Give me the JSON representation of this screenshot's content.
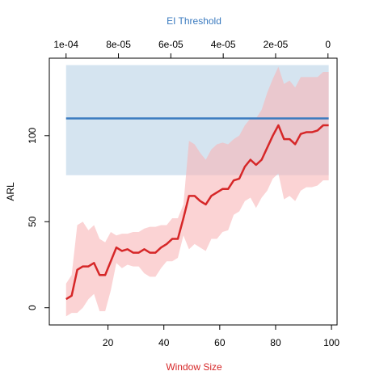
{
  "chart_data": {
    "type": "line",
    "xlabel": "Window Size",
    "ylabel": "ARL",
    "top_axis_label": "EI Threshold",
    "xlim": [
      -1,
      102
    ],
    "ylim": [
      -10,
      145
    ],
    "x_ticks": [
      20,
      40,
      60,
      80,
      100
    ],
    "x_tick_labels": [
      "20",
      "40",
      "60",
      "80",
      "100"
    ],
    "y_ticks": [
      0,
      50,
      100
    ],
    "y_tick_labels": [
      "0",
      "50",
      "100"
    ],
    "top_ticks_x": [
      5,
      23.75,
      42.5,
      61.25,
      80,
      98.75
    ],
    "top_tick_labels": [
      "1e-04",
      "8e-05",
      "6e-05",
      "4e-05",
      "2e-05",
      "0"
    ],
    "colors": {
      "window_line": "#d62728",
      "window_band": "#f8b5b8",
      "threshold_line": "#3a7abf",
      "threshold_band": "#b3cde3",
      "xlabel": "#d62728",
      "top_label": "#3a7abf"
    },
    "series": [
      {
        "kind": "line-with-band",
        "x": [
          5,
          7,
          9,
          11,
          13,
          15,
          17,
          19,
          21,
          23,
          25,
          27,
          29,
          31,
          33,
          35,
          37,
          39,
          41,
          43,
          45,
          47,
          49,
          51,
          53,
          55,
          57,
          59,
          61,
          63,
          65,
          67,
          69,
          71,
          73,
          75,
          77,
          79,
          81,
          83,
          85,
          87,
          89,
          91,
          93,
          95,
          97,
          99
        ],
        "y": [
          5,
          7,
          22,
          24,
          24,
          26,
          19,
          19,
          27,
          35,
          33,
          34,
          32,
          32,
          34,
          32,
          32,
          35,
          37,
          40,
          40,
          52,
          65,
          65,
          62,
          60,
          65,
          67,
          69,
          69,
          74,
          75,
          82,
          86,
          83,
          86,
          93,
          100,
          106,
          98,
          98,
          95,
          101,
          102,
          102,
          103,
          106,
          106
        ],
        "lower": [
          -5,
          -3,
          -3,
          0,
          5,
          8,
          -2,
          -2,
          10,
          26,
          23,
          25,
          24,
          24,
          20,
          18,
          18,
          23,
          27,
          27,
          29,
          42,
          34,
          37,
          35,
          33,
          40,
          40,
          44,
          45,
          54,
          56,
          62,
          64,
          58,
          64,
          68,
          75,
          78,
          63,
          65,
          62,
          68,
          70,
          70,
          71,
          74,
          74
        ],
        "upper": [
          14,
          19,
          48,
          50,
          45,
          48,
          40,
          38,
          44,
          42,
          43,
          43,
          44,
          44,
          46,
          47,
          47,
          48,
          48,
          52,
          52,
          60,
          97,
          95,
          90,
          86,
          92,
          95,
          96,
          95,
          98,
          100,
          106,
          110,
          110,
          115,
          125,
          133,
          140,
          130,
          132,
          128,
          134,
          134,
          134,
          134,
          137,
          137
        ]
      },
      {
        "kind": "line-with-band",
        "x": [
          5,
          99
        ],
        "y": [
          110,
          110
        ],
        "lower": [
          77,
          77
        ],
        "upper": [
          141,
          141
        ]
      }
    ]
  }
}
